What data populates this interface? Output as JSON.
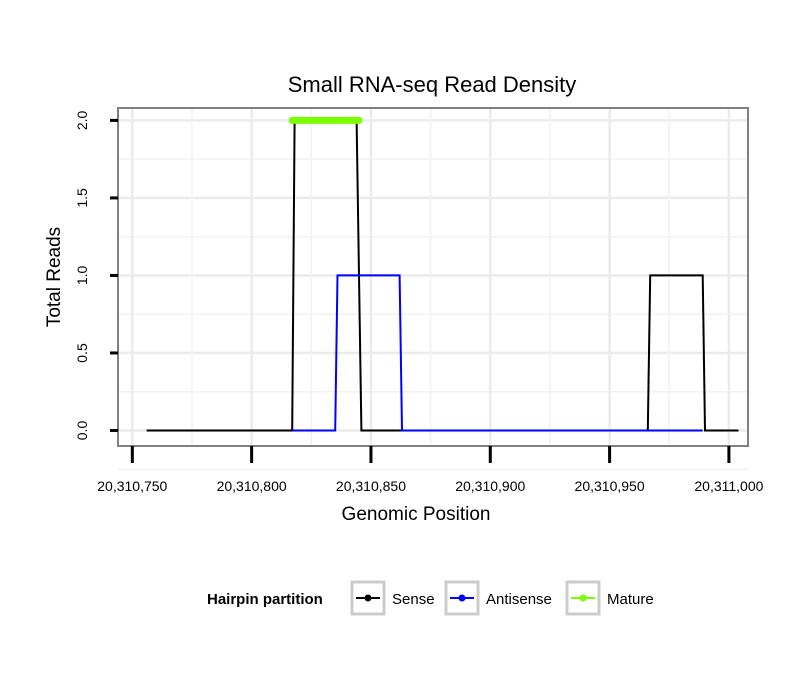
{
  "chart_data": {
    "type": "line",
    "title": "Small RNA-seq Read Density",
    "xlabel": "Genomic Position",
    "ylabel": "Total Reads",
    "xlim": [
      20310744,
      20311008
    ],
    "ylim": [
      -0.1,
      2.08
    ],
    "x_ticks": [
      20310750,
      20310800,
      20310850,
      20310900,
      20310950,
      20311000
    ],
    "x_tick_labels": [
      "20,310,750",
      "20,310,800",
      "20,310,850",
      "20,310,900",
      "20,310,950",
      "20,311,000"
    ],
    "y_ticks": [
      0,
      0.5,
      1,
      1.5,
      2
    ],
    "y_tick_labels": [
      "0.0",
      "0.5",
      "1.0",
      "1.5",
      "2.0"
    ],
    "grid": true,
    "legend_position": "bottom",
    "legend_title": "Hairpin partition",
    "series": [
      {
        "name": "Sense",
        "color": "#000000",
        "x": [
          20310756,
          20310817,
          20310818,
          20310844,
          20310846,
          20310966,
          20310967,
          20310989,
          20310990,
          20311004
        ],
        "y": [
          0,
          0,
          2,
          2,
          0,
          0,
          1,
          1,
          0,
          0
        ]
      },
      {
        "name": "Antisense",
        "color": "#0000ff",
        "x": [
          20310817,
          20310835,
          20310836,
          20310862,
          20310863,
          20310989
        ],
        "y": [
          0,
          0,
          1,
          1,
          0,
          0
        ]
      },
      {
        "name": "Mature",
        "color": "#7cfc00",
        "x": [
          20310817,
          20310845
        ],
        "y": [
          2,
          2
        ]
      }
    ]
  }
}
